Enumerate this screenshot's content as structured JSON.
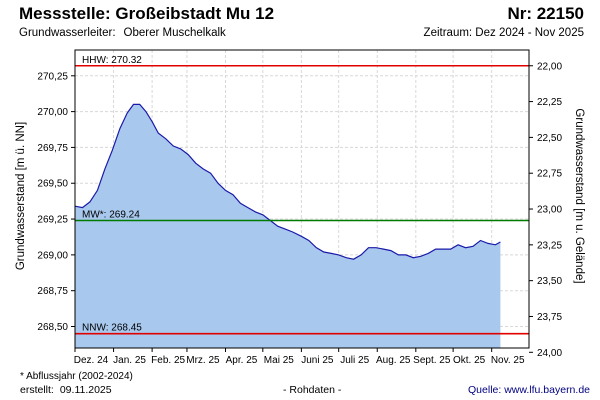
{
  "header": {
    "title": "Messstelle: Großeibstadt Mu 12",
    "number": "Nr: 22150",
    "aquifer_label": "Grundwasserleiter:",
    "aquifer_value": "Oberer Muschelkalk",
    "period": "Zeitraum: Dez 2024 - Nov 2025"
  },
  "footer": {
    "footnote": "* Abflussjahr (2002-2024)",
    "created_label": "erstellt:",
    "created_date": "09.11.2025",
    "raw": "- Rohdaten -",
    "source": "Quelle:  www.lfu.bayern.de"
  },
  "colors": {
    "fill": "#a8c8ee",
    "line": "#1a1aa8",
    "hhw": "#e00000",
    "nnw": "#e00000",
    "mw": "#007a00",
    "grid": "#d8d8d8"
  },
  "chart_data": {
    "type": "area",
    "ylabel": "Grundwasserstand [m ü. NN]",
    "ylabel_right": "Grundwasserstand [m u. Gelände]",
    "ylim": [
      268.35,
      270.43
    ],
    "yticks": [
      "268,50",
      "268,75",
      "269,00",
      "269,25",
      "269,50",
      "269,75",
      "270,00",
      "270,25"
    ],
    "ytick_values": [
      268.5,
      268.75,
      269.0,
      269.25,
      269.5,
      269.75,
      270.0,
      270.25
    ],
    "yticks_right": [
      "24,00",
      "23,75",
      "23,50",
      "23,25",
      "23,00",
      "22,75",
      "22,50",
      "22,25",
      "22,00"
    ],
    "ytick_right_values": [
      268.32,
      268.57,
      268.82,
      269.07,
      269.32,
      269.57,
      269.82,
      270.07,
      270.32
    ],
    "xlim": [
      "2024-12-01",
      "2025-12-01"
    ],
    "xticks": [
      "Dez. 24",
      "Jan. 25",
      "Feb. 25",
      "Mrz. 25",
      "Apr. 25",
      "Mai 25",
      "Juni 25",
      "Juli 25",
      "Aug. 25",
      "Sept. 25",
      "Okt. 25",
      "Nov. 25"
    ],
    "xtick_dates": [
      "2024-12-01",
      "2025-01-01",
      "2025-02-01",
      "2025-03-01",
      "2025-04-01",
      "2025-05-01",
      "2025-06-01",
      "2025-07-01",
      "2025-08-01",
      "2025-09-01",
      "2025-10-01",
      "2025-11-01"
    ],
    "grid": true,
    "reference_lines": [
      {
        "label": "HHW: 270.32",
        "value": 270.32,
        "color": "#e00000"
      },
      {
        "label": "MW*: 269.24",
        "value": 269.24,
        "color": "#007a00"
      },
      {
        "label": "NNW: 268.45",
        "value": 268.45,
        "color": "#e00000"
      }
    ],
    "series": [
      {
        "x": [
          "2024-12-01",
          "2024-12-07",
          "2024-12-13",
          "2024-12-19",
          "2024-12-25",
          "2024-12-31",
          "2025-01-06",
          "2025-01-12",
          "2025-01-17",
          "2025-01-22",
          "2025-01-27",
          "2025-02-01",
          "2025-02-06",
          "2025-02-12",
          "2025-02-18",
          "2025-02-24",
          "2025-03-02",
          "2025-03-08",
          "2025-03-14",
          "2025-03-20",
          "2025-03-26",
          "2025-04-01",
          "2025-04-07",
          "2025-04-13",
          "2025-04-19",
          "2025-04-25",
          "2025-05-01",
          "2025-05-07",
          "2025-05-13",
          "2025-05-19",
          "2025-05-25",
          "2025-06-01",
          "2025-06-07",
          "2025-06-13",
          "2025-06-19",
          "2025-06-25",
          "2025-07-01",
          "2025-07-07",
          "2025-07-13",
          "2025-07-19",
          "2025-07-25",
          "2025-07-31",
          "2025-08-06",
          "2025-08-12",
          "2025-08-18",
          "2025-08-24",
          "2025-08-30",
          "2025-09-05",
          "2025-09-11",
          "2025-09-17",
          "2025-09-23",
          "2025-09-29",
          "2025-10-05",
          "2025-10-11",
          "2025-10-17",
          "2025-10-23",
          "2025-10-29",
          "2025-11-04",
          "2025-11-08"
        ],
        "values": [
          269.34,
          269.33,
          269.37,
          269.45,
          269.6,
          269.73,
          269.88,
          269.99,
          270.05,
          270.05,
          270.0,
          269.93,
          269.85,
          269.81,
          269.76,
          269.74,
          269.7,
          269.64,
          269.6,
          269.57,
          269.5,
          269.45,
          269.42,
          269.36,
          269.33,
          269.3,
          269.28,
          269.24,
          269.2,
          269.18,
          269.16,
          269.13,
          269.1,
          269.05,
          269.02,
          269.01,
          269.0,
          268.98,
          268.97,
          269.0,
          269.05,
          269.05,
          269.04,
          269.03,
          269.0,
          269.0,
          268.98,
          268.99,
          269.01,
          269.04,
          269.04,
          269.04,
          269.07,
          269.05,
          269.06,
          269.1,
          269.08,
          269.07,
          269.09
        ]
      }
    ]
  }
}
